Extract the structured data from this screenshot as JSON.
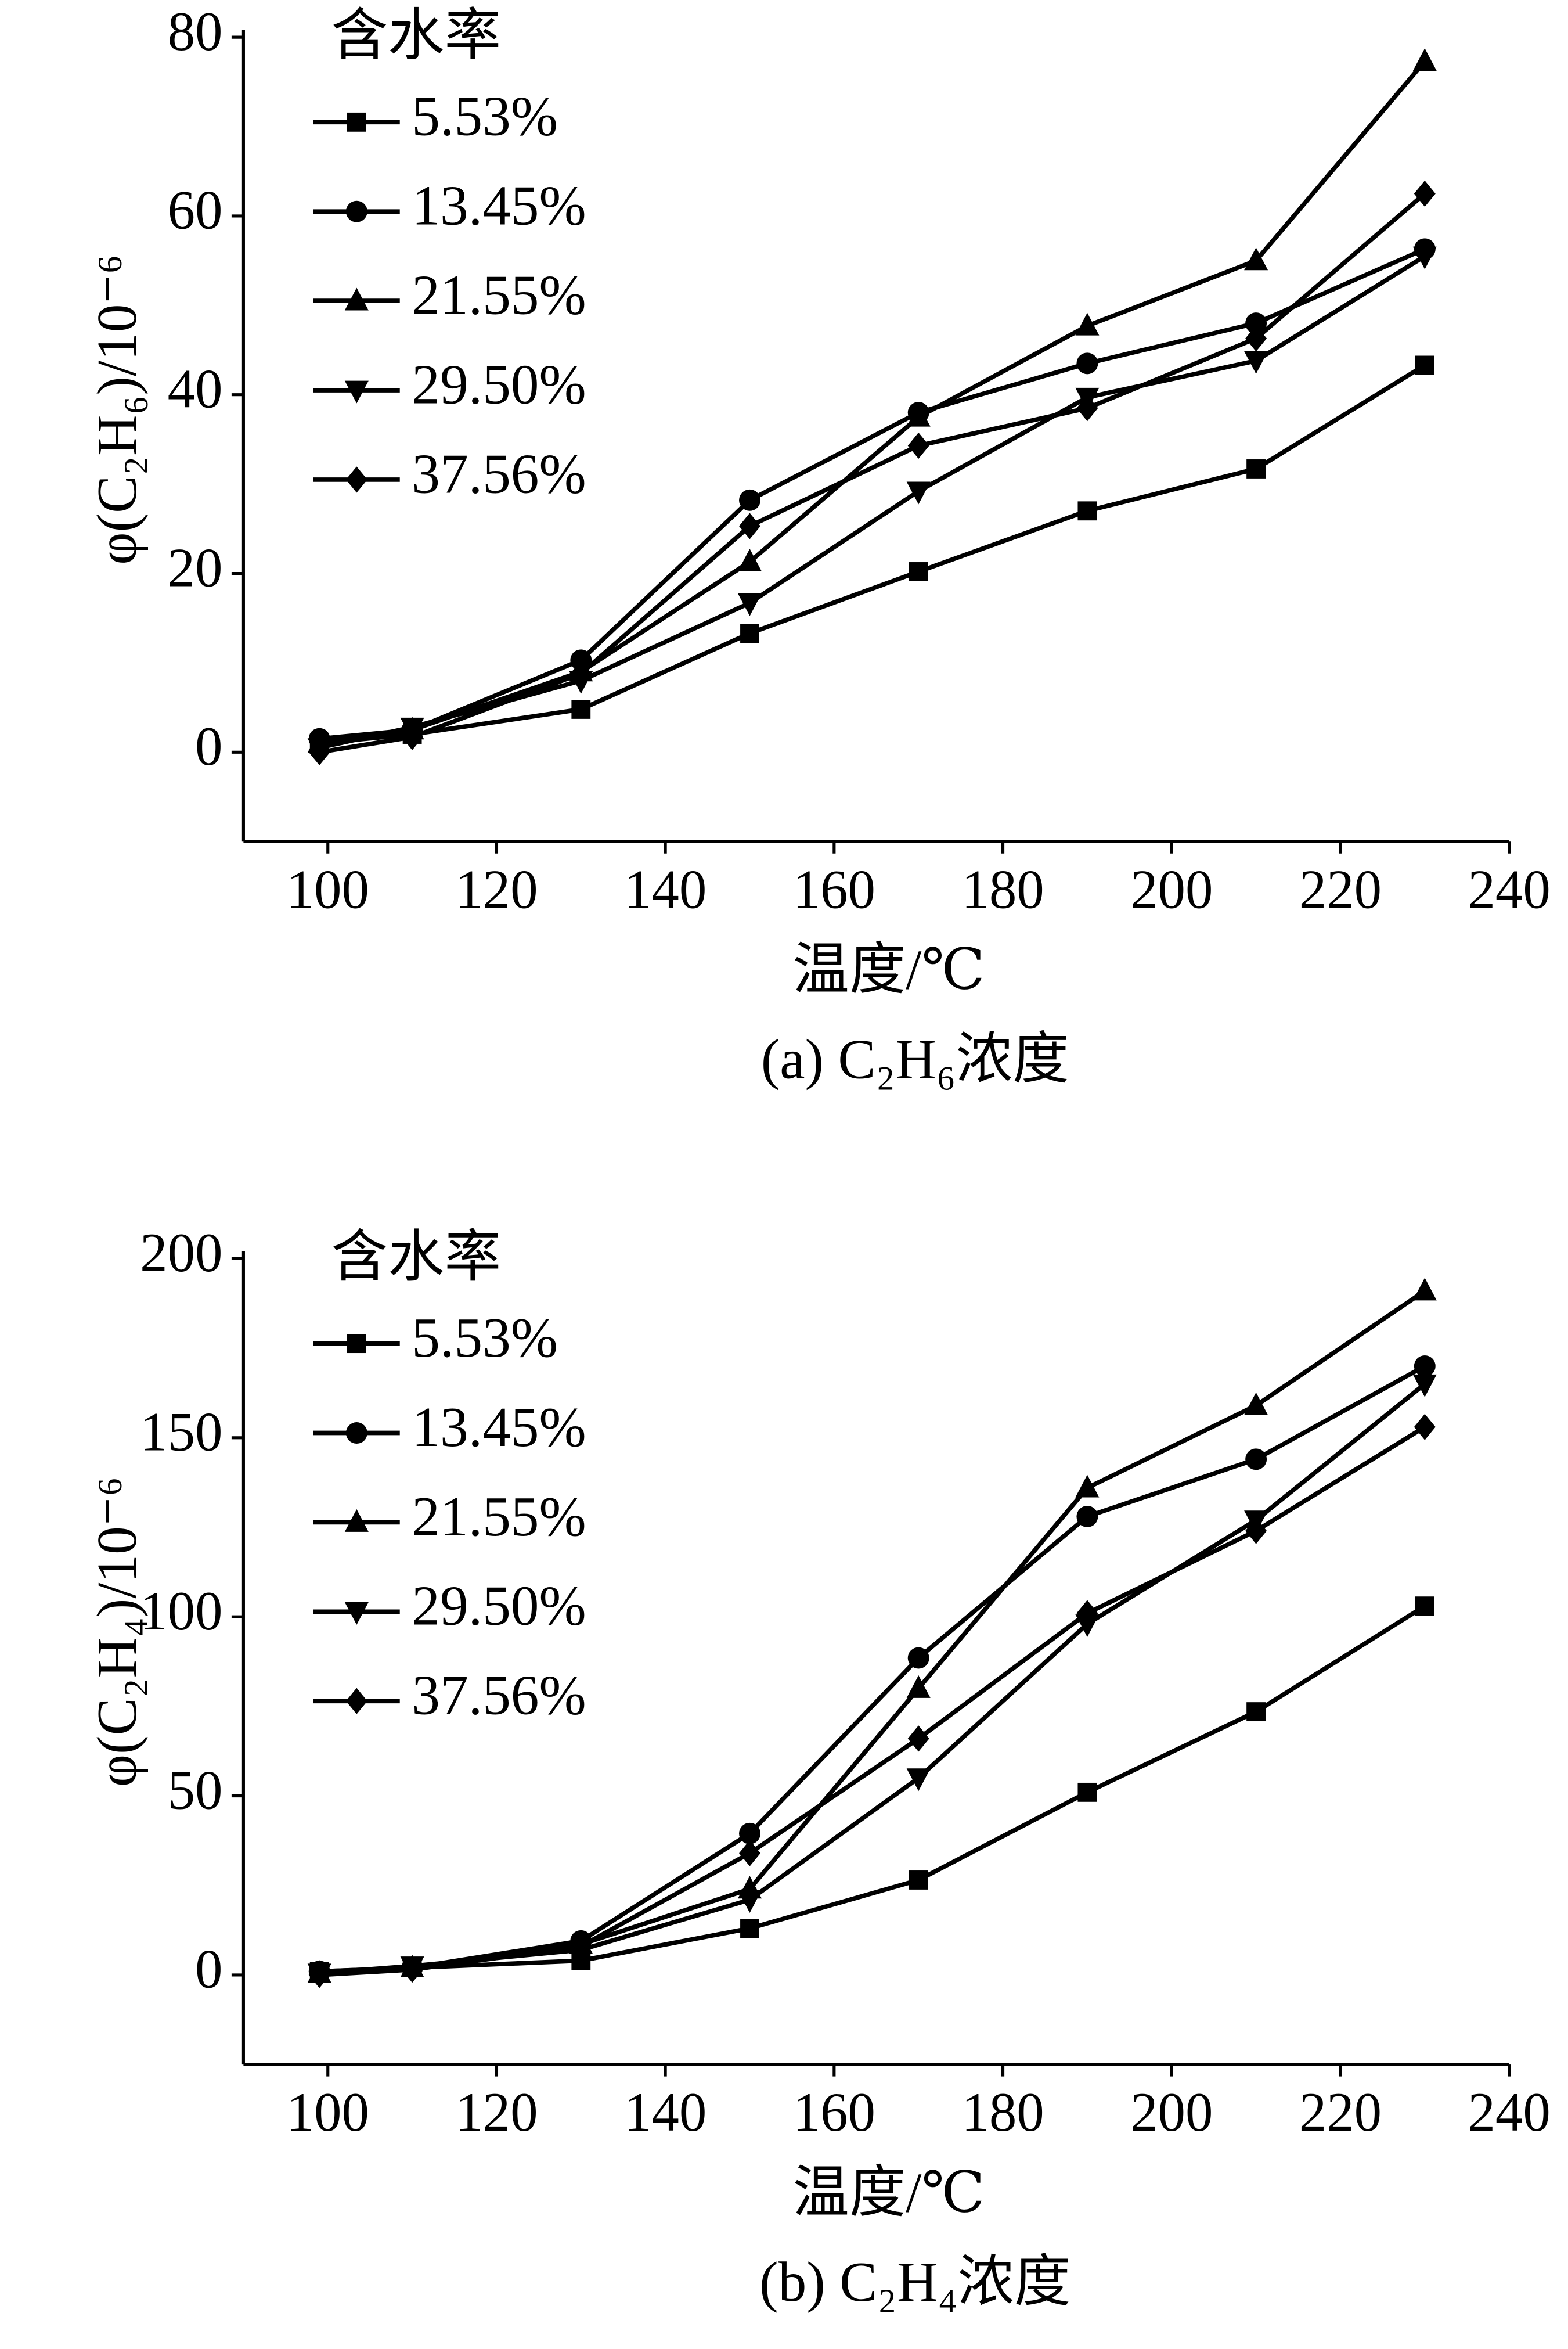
{
  "chart_data": [
    {
      "type": "line",
      "title": "(a)  C₂H₆浓度",
      "xlabel": "温度/℃",
      "ylabel": "φ(C₂H₆)/10⁻⁶",
      "legend_title": "含水率",
      "x": [
        99,
        110,
        130,
        150,
        170,
        190,
        210,
        230
      ],
      "xlim": [
        90,
        240
      ],
      "xticks": [
        100,
        120,
        140,
        160,
        180,
        200,
        220,
        240
      ],
      "ylim": [
        -10,
        80
      ],
      "yticks": [
        0,
        20,
        40,
        60,
        80
      ],
      "series": [
        {
          "name": "5.53%",
          "color": "#000000",
          "marker": "square",
          "values": [
            1,
            2,
            4.8,
            13.3,
            20.2,
            27,
            31.7,
            43.3
          ]
        },
        {
          "name": "13.45%",
          "color": "#000000",
          "marker": "circle",
          "values": [
            1.5,
            2.5,
            10.3,
            28.2,
            38,
            43.5,
            48,
            56.3
          ]
        },
        {
          "name": "21.55%",
          "color": "#000000",
          "marker": "triangle",
          "values": [
            1,
            2.5,
            9,
            21.3,
            37.5,
            47.7,
            55,
            77.3
          ]
        },
        {
          "name": "29.50%",
          "color": "#000000",
          "marker": "triangle-down",
          "values": [
            0.5,
            2.8,
            8,
            16.7,
            29.2,
            39.7,
            43.8,
            55.5
          ]
        },
        {
          "name": "37.56%",
          "color": "#000000",
          "marker": "diamond",
          "values": [
            0,
            1.7,
            8.8,
            25.3,
            34.3,
            38.5,
            46.3,
            62.5
          ]
        }
      ]
    },
    {
      "type": "line",
      "title": "(b)  C₂H₄浓度",
      "xlabel": "温度/℃",
      "ylabel": "φ(C₂H₄)/10⁻⁶",
      "legend_title": "含水率",
      "x": [
        99,
        110,
        130,
        150,
        170,
        190,
        210,
        230
      ],
      "xlim": [
        90,
        240
      ],
      "xticks": [
        100,
        120,
        140,
        160,
        180,
        200,
        220,
        240
      ],
      "ylim": [
        -25,
        200
      ],
      "yticks": [
        0,
        50,
        100,
        150,
        200
      ],
      "series": [
        {
          "name": "5.53%",
          "color": "#000000",
          "marker": "square",
          "values": [
            1,
            2,
            4,
            13,
            26.5,
            51,
            73.5,
            103
          ]
        },
        {
          "name": "13.45%",
          "color": "#000000",
          "marker": "circle",
          "values": [
            1,
            2,
            9.5,
            39.5,
            88.5,
            128,
            144,
            170
          ]
        },
        {
          "name": "21.55%",
          "color": "#000000",
          "marker": "triangle",
          "values": [
            0.5,
            2,
            8.5,
            24,
            80,
            136,
            159,
            191
          ]
        },
        {
          "name": "29.50%",
          "color": "#000000",
          "marker": "triangle-down",
          "values": [
            0.5,
            2.5,
            7,
            21,
            55,
            98,
            127,
            165
          ]
        },
        {
          "name": "37.56%",
          "color": "#000000",
          "marker": "diamond",
          "values": [
            0,
            1.5,
            8,
            34,
            66,
            101,
            124,
            153
          ]
        }
      ]
    }
  ]
}
